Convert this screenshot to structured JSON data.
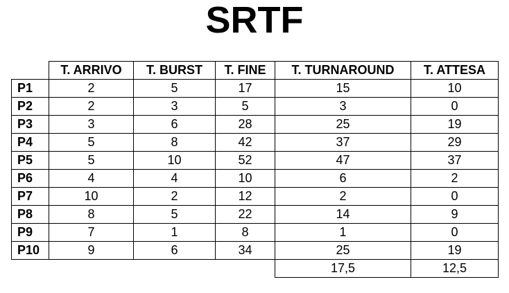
{
  "title": "SRTF",
  "columns": [
    "T. ARRIVO",
    "T. BURST",
    "T. FINE",
    "T. TURNAROUND",
    "T. ATTESA"
  ],
  "rows": [
    {
      "label": "P1",
      "values": [
        "2",
        "5",
        "17",
        "15",
        "10"
      ]
    },
    {
      "label": "P2",
      "values": [
        "2",
        "3",
        "5",
        "3",
        "0"
      ]
    },
    {
      "label": "P3",
      "values": [
        "3",
        "6",
        "28",
        "25",
        "19"
      ]
    },
    {
      "label": "P4",
      "values": [
        "5",
        "8",
        "42",
        "37",
        "29"
      ]
    },
    {
      "label": "P5",
      "values": [
        "5",
        "10",
        "52",
        "47",
        "37"
      ]
    },
    {
      "label": "P6",
      "values": [
        "4",
        "4",
        "10",
        "6",
        "2"
      ]
    },
    {
      "label": "P7",
      "values": [
        "10",
        "2",
        "12",
        "2",
        "0"
      ]
    },
    {
      "label": "P8",
      "values": [
        "8",
        "5",
        "22",
        "14",
        "9"
      ]
    },
    {
      "label": "P9",
      "values": [
        "7",
        "1",
        "8",
        "1",
        "0"
      ]
    },
    {
      "label": "P10",
      "values": [
        "9",
        "6",
        "34",
        "25",
        "19"
      ]
    }
  ],
  "averages": {
    "turnaround": "17,5",
    "attesa": "12,5"
  }
}
